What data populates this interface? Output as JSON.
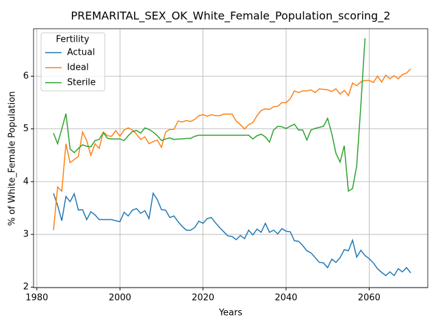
{
  "chart_data": {
    "type": "line",
    "title": "PREMARITAL_SEX_OK_White_Female_Population_scoring_2",
    "xlabel": "Years",
    "ylabel": "% of White_Female Population",
    "legend_title": "Fertility",
    "legend": "upper left",
    "grid": true,
    "xlim": [
      1979.2,
      2074.1
    ],
    "xticks": [
      1980,
      2000,
      2020,
      2040,
      2060
    ],
    "ylim": [
      1.99,
      6.9
    ],
    "yticks": [
      2,
      3,
      4,
      5,
      6
    ],
    "x": [
      1984,
      1985,
      1986,
      1987,
      1988,
      1989,
      1990,
      1991,
      1992,
      1993,
      1994,
      1995,
      1996,
      1997,
      1998,
      1999,
      2000,
      2001,
      2002,
      2003,
      2004,
      2005,
      2006,
      2007,
      2008,
      2009,
      2010,
      2011,
      2012,
      2013,
      2014,
      2015,
      2016,
      2017,
      2018,
      2019,
      2020,
      2021,
      2022,
      2023,
      2024,
      2025,
      2026,
      2027,
      2028,
      2029,
      2030,
      2031,
      2032,
      2033,
      2034,
      2035,
      2036,
      2037,
      2038,
      2039,
      2040,
      2041,
      2042,
      2043,
      2044,
      2045,
      2046,
      2047,
      2048,
      2049,
      2050,
      2051,
      2052,
      2053,
      2054,
      2055,
      2056,
      2057,
      2058,
      2059,
      2060,
      2061,
      2062,
      2063,
      2064,
      2065,
      2066,
      2067,
      2068,
      2069,
      2070
    ],
    "series": [
      {
        "name": "Actual",
        "color": "#1f77b4",
        "values": [
          3.78,
          3.55,
          3.26,
          3.72,
          3.62,
          3.77,
          3.46,
          3.47,
          3.28,
          3.43,
          3.37,
          3.28,
          3.28,
          3.28,
          3.28,
          3.26,
          3.24,
          3.42,
          3.35,
          3.46,
          3.49,
          3.4,
          3.45,
          3.3,
          3.78,
          3.66,
          3.47,
          3.46,
          3.32,
          3.35,
          3.24,
          3.15,
          3.08,
          3.08,
          3.13,
          3.25,
          3.21,
          3.3,
          3.32,
          3.22,
          3.13,
          3.05,
          2.97,
          2.96,
          2.9,
          2.98,
          2.92,
          3.08,
          2.99,
          3.1,
          3.04,
          3.21,
          3.04,
          3.08,
          3.01,
          3.11,
          3.06,
          3.05,
          2.88,
          2.87,
          2.79,
          2.69,
          2.65,
          2.56,
          2.47,
          2.46,
          2.37,
          2.53,
          2.47,
          2.56,
          2.71,
          2.69,
          2.89,
          2.57,
          2.7,
          2.6,
          2.54,
          2.46,
          2.35,
          2.28,
          2.22,
          2.29,
          2.22,
          2.35,
          2.29,
          2.37,
          2.27
        ]
      },
      {
        "name": "Ideal",
        "color": "#ff7f0e",
        "values": [
          3.08,
          3.9,
          3.82,
          4.72,
          4.36,
          4.42,
          4.48,
          4.94,
          4.78,
          4.5,
          4.72,
          4.63,
          4.94,
          4.87,
          4.86,
          4.97,
          4.86,
          4.98,
          5.02,
          4.98,
          4.9,
          4.8,
          4.85,
          4.72,
          4.76,
          4.79,
          4.65,
          4.94,
          4.99,
          4.99,
          5.15,
          5.13,
          5.16,
          5.14,
          5.18,
          5.25,
          5.27,
          5.24,
          5.27,
          5.25,
          5.25,
          5.28,
          5.28,
          5.28,
          5.15,
          5.08,
          5.0,
          5.08,
          5.12,
          5.25,
          5.35,
          5.38,
          5.37,
          5.42,
          5.43,
          5.5,
          5.5,
          5.57,
          5.72,
          5.69,
          5.72,
          5.72,
          5.74,
          5.69,
          5.76,
          5.75,
          5.74,
          5.71,
          5.76,
          5.66,
          5.73,
          5.63,
          5.87,
          5.82,
          5.89,
          5.92,
          5.92,
          5.88,
          6.0,
          5.89,
          6.02,
          5.95,
          6.01,
          5.95,
          6.03,
          6.06,
          6.14
        ]
      },
      {
        "name": "Sterile",
        "color": "#2ca02c",
        "values": [
          4.92,
          4.72,
          5.0,
          5.29,
          4.62,
          4.55,
          4.63,
          4.7,
          4.67,
          4.66,
          4.78,
          4.8,
          4.93,
          4.82,
          4.81,
          4.81,
          4.81,
          4.78,
          4.87,
          4.95,
          4.97,
          4.92,
          5.02,
          4.99,
          4.94,
          4.87,
          4.78,
          4.81,
          4.83,
          4.8,
          4.81,
          4.81,
          4.82,
          4.82,
          4.86,
          4.88,
          4.88,
          4.88,
          4.88,
          4.88,
          4.88,
          4.88,
          4.88,
          4.88,
          4.88,
          4.88,
          4.88,
          4.88,
          4.81,
          4.87,
          4.9,
          4.85,
          4.75,
          4.98,
          5.05,
          5.04,
          5.01,
          5.05,
          5.09,
          4.98,
          4.98,
          4.79,
          4.98,
          5.01,
          5.03,
          5.05,
          5.2,
          4.91,
          4.54,
          4.37,
          4.68,
          3.82,
          3.87,
          4.3,
          5.45,
          6.72,
          null,
          null,
          null,
          null,
          null,
          null,
          null,
          null,
          null,
          null,
          null
        ]
      }
    ]
  }
}
